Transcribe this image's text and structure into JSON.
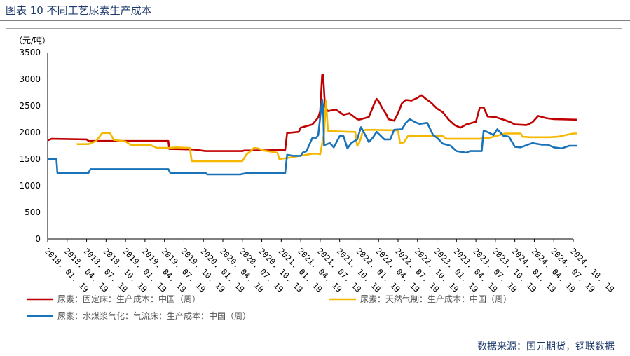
{
  "header": {
    "title": "图表 10  不同工艺尿素生产成本"
  },
  "footer": {
    "source": "数据来源：国元期货，钢联数据"
  },
  "chart_data": {
    "type": "line",
    "title": "不同工艺尿素生产成本",
    "ylabel": "（元/吨）",
    "ylim": [
      0,
      3500
    ],
    "yticks": [
      "3500",
      "3000",
      "2500",
      "2000",
      "1500",
      "1000",
      "500",
      "0"
    ],
    "categories": [
      "2018. 01. 19",
      "2018. 04. 19",
      "2018. 07. 19",
      "2018. 10. 19",
      "2019. 01. 19",
      "2019. 04. 19",
      "2019. 07. 19",
      "2019. 10. 19",
      "2020. 01. 19",
      "2020. 04. 19",
      "2020. 07. 19",
      "2020. 10. 19",
      "2021. 01. 19",
      "2021. 04. 19",
      "2021. 07. 19",
      "2021. 10. 19",
      "2022. 01. 19",
      "2022. 04. 19",
      "2022. 07. 19",
      "2022. 10. 19",
      "2023. 01. 19",
      "2023. 04. 19",
      "2023. 07. 19",
      "2023. 10. 19",
      "2024. 01. 19",
      "2024. 04. 19",
      "2024. 07. 19",
      "2024. 10. 19"
    ],
    "series": [
      {
        "name": "尿素：固定床：生产成本：中国（周）",
        "color": "#c00000",
        "points": [
          [
            0,
            1850
          ],
          [
            0.2,
            1880
          ],
          [
            2.0,
            1870
          ],
          [
            2.1,
            1840
          ],
          [
            3.0,
            1840
          ],
          [
            6.2,
            1840
          ],
          [
            6.25,
            1690
          ],
          [
            7.5,
            1680
          ],
          [
            8.1,
            1650
          ],
          [
            10.0,
            1650
          ],
          [
            10.1,
            1660
          ],
          [
            12.2,
            1670
          ],
          [
            12.3,
            1990
          ],
          [
            12.9,
            2010
          ],
          [
            13.0,
            2090
          ],
          [
            13.3,
            2120
          ],
          [
            13.6,
            2150
          ],
          [
            13.9,
            2280
          ],
          [
            14.0,
            2400
          ],
          [
            14.1,
            3080
          ],
          [
            14.15,
            3080
          ],
          [
            14.25,
            2480
          ],
          [
            14.4,
            2400
          ],
          [
            14.8,
            2430
          ],
          [
            15.0,
            2380
          ],
          [
            15.2,
            2330
          ],
          [
            15.5,
            2360
          ],
          [
            15.9,
            2250
          ],
          [
            16.0,
            2240
          ],
          [
            16.5,
            2290
          ],
          [
            16.8,
            2560
          ],
          [
            16.9,
            2630
          ],
          [
            17.0,
            2590
          ],
          [
            17.2,
            2450
          ],
          [
            17.4,
            2340
          ],
          [
            17.5,
            2250
          ],
          [
            17.8,
            2220
          ],
          [
            18.0,
            2360
          ],
          [
            18.2,
            2550
          ],
          [
            18.4,
            2610
          ],
          [
            18.7,
            2600
          ],
          [
            19.0,
            2650
          ],
          [
            19.2,
            2700
          ],
          [
            19.4,
            2640
          ],
          [
            19.7,
            2560
          ],
          [
            20.0,
            2450
          ],
          [
            20.3,
            2380
          ],
          [
            20.6,
            2240
          ],
          [
            20.9,
            2140
          ],
          [
            21.2,
            2090
          ],
          [
            21.5,
            2150
          ],
          [
            22.0,
            2200
          ],
          [
            22.2,
            2470
          ],
          [
            22.4,
            2470
          ],
          [
            22.6,
            2300
          ],
          [
            23.0,
            2290
          ],
          [
            23.5,
            2230
          ],
          [
            23.8,
            2190
          ],
          [
            24.0,
            2150
          ],
          [
            24.6,
            2140
          ],
          [
            24.9,
            2190
          ],
          [
            25.2,
            2310
          ],
          [
            25.6,
            2270
          ],
          [
            26.0,
            2250
          ],
          [
            27.2,
            2240
          ]
        ]
      },
      {
        "name": "尿素：天然气制：生产成本：中国（周）",
        "color": "#f5b800",
        "points": [
          [
            1.5,
            1780
          ],
          [
            2.1,
            1780
          ],
          [
            2.5,
            1840
          ],
          [
            2.8,
            1990
          ],
          [
            3.2,
            1990
          ],
          [
            3.4,
            1860
          ],
          [
            4.0,
            1830
          ],
          [
            4.3,
            1760
          ],
          [
            5.3,
            1760
          ],
          [
            5.6,
            1710
          ],
          [
            6.3,
            1710
          ],
          [
            6.6,
            1720
          ],
          [
            7.3,
            1710
          ],
          [
            7.4,
            1460
          ],
          [
            8.8,
            1460
          ],
          [
            10.0,
            1460
          ],
          [
            10.2,
            1580
          ],
          [
            10.4,
            1640
          ],
          [
            10.6,
            1710
          ],
          [
            10.8,
            1700
          ],
          [
            11.1,
            1660
          ],
          [
            11.8,
            1620
          ],
          [
            11.9,
            1500
          ],
          [
            12.3,
            1520
          ],
          [
            13.6,
            1600
          ],
          [
            13.9,
            1600
          ],
          [
            14.0,
            1590
          ],
          [
            14.2,
            1980
          ],
          [
            14.3,
            2590
          ],
          [
            14.4,
            2030
          ],
          [
            14.9,
            2020
          ],
          [
            15.5,
            2010
          ],
          [
            15.8,
            2010
          ],
          [
            15.9,
            1750
          ],
          [
            16.0,
            1800
          ],
          [
            16.1,
            1900
          ],
          [
            16.2,
            2040
          ],
          [
            16.4,
            2050
          ],
          [
            18.0,
            2040
          ],
          [
            18.1,
            1800
          ],
          [
            18.3,
            1810
          ],
          [
            18.5,
            1930
          ],
          [
            18.8,
            1930
          ],
          [
            19.5,
            1930
          ],
          [
            19.6,
            1940
          ],
          [
            20.3,
            1930
          ],
          [
            20.5,
            1880
          ],
          [
            22.2,
            1880
          ],
          [
            22.3,
            1890
          ],
          [
            22.7,
            1900
          ],
          [
            23.5,
            1980
          ],
          [
            24.3,
            1980
          ],
          [
            24.4,
            1920
          ],
          [
            24.8,
            1910
          ],
          [
            25.8,
            1910
          ],
          [
            26.2,
            1920
          ],
          [
            27.0,
            1980
          ],
          [
            27.2,
            1980
          ]
        ]
      },
      {
        "name": "尿素：水煤浆气化：气流床：生产成本：中国（周）",
        "color": "#1a73b8",
        "points": [
          [
            0,
            1500
          ],
          [
            0.45,
            1500
          ],
          [
            0.5,
            1240
          ],
          [
            1.5,
            1240
          ],
          [
            2.1,
            1240
          ],
          [
            2.2,
            1310
          ],
          [
            4.8,
            1310
          ],
          [
            6.2,
            1310
          ],
          [
            6.3,
            1240
          ],
          [
            8.1,
            1240
          ],
          [
            8.2,
            1210
          ],
          [
            9.9,
            1210
          ],
          [
            10.0,
            1220
          ],
          [
            10.3,
            1240
          ],
          [
            12.2,
            1240
          ],
          [
            12.3,
            1580
          ],
          [
            12.6,
            1560
          ],
          [
            13.0,
            1560
          ],
          [
            13.1,
            1620
          ],
          [
            13.3,
            1650
          ],
          [
            13.6,
            1900
          ],
          [
            13.8,
            1900
          ],
          [
            13.9,
            1950
          ],
          [
            14.1,
            2620
          ],
          [
            14.15,
            2480
          ],
          [
            14.2,
            1760
          ],
          [
            14.5,
            1800
          ],
          [
            14.7,
            1720
          ],
          [
            15.0,
            1930
          ],
          [
            15.2,
            1930
          ],
          [
            15.4,
            1700
          ],
          [
            15.6,
            1800
          ],
          [
            15.9,
            1870
          ],
          [
            16.1,
            2100
          ],
          [
            16.3,
            1960
          ],
          [
            16.5,
            1820
          ],
          [
            16.7,
            1900
          ],
          [
            16.9,
            2010
          ],
          [
            17.3,
            1870
          ],
          [
            17.6,
            1870
          ],
          [
            17.8,
            2050
          ],
          [
            18.2,
            2060
          ],
          [
            18.4,
            2180
          ],
          [
            18.6,
            2250
          ],
          [
            18.9,
            2190
          ],
          [
            19.1,
            2160
          ],
          [
            19.5,
            2180
          ],
          [
            19.8,
            1950
          ],
          [
            20.0,
            1900
          ],
          [
            20.3,
            1790
          ],
          [
            20.7,
            1750
          ],
          [
            21.0,
            1650
          ],
          [
            21.5,
            1620
          ],
          [
            21.7,
            1650
          ],
          [
            22.3,
            1650
          ],
          [
            22.4,
            2040
          ],
          [
            22.7,
            1990
          ],
          [
            22.9,
            1950
          ],
          [
            23.1,
            2060
          ],
          [
            23.4,
            1940
          ],
          [
            23.7,
            1920
          ],
          [
            24.0,
            1730
          ],
          [
            24.3,
            1720
          ],
          [
            24.6,
            1760
          ],
          [
            24.9,
            1800
          ],
          [
            25.4,
            1770
          ],
          [
            25.7,
            1770
          ],
          [
            26.0,
            1720
          ],
          [
            26.4,
            1700
          ],
          [
            26.8,
            1750
          ],
          [
            27.2,
            1750
          ]
        ]
      }
    ],
    "legend": "bottom"
  }
}
